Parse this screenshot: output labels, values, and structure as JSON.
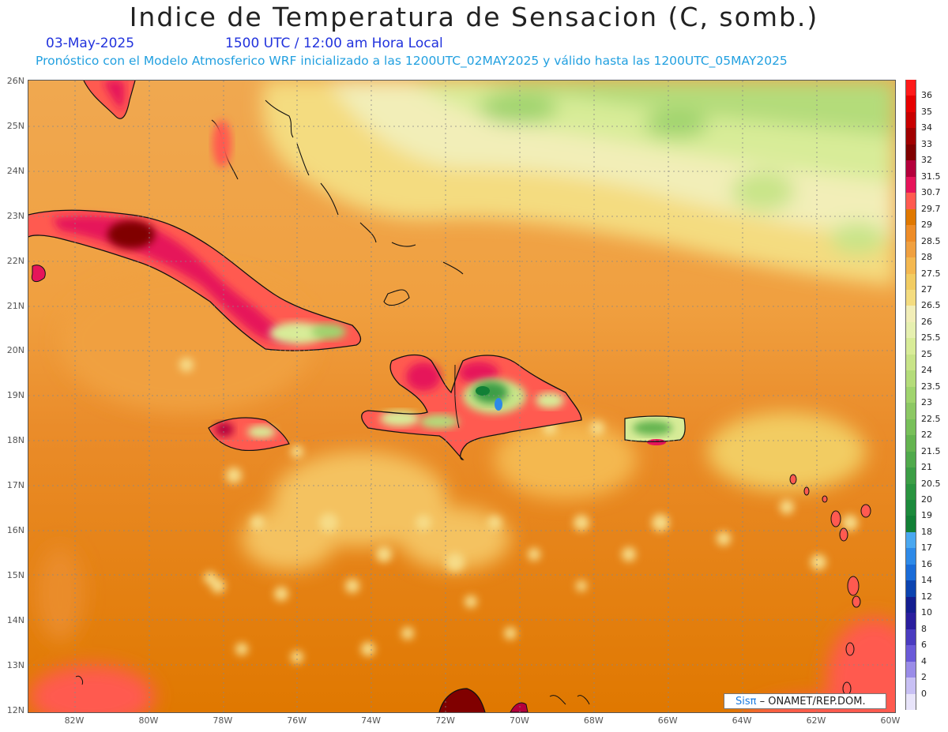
{
  "header": {
    "title": "Indice de Temperatura de Sensacion (C, somb.)",
    "date": "03-May-2025",
    "time": "1500 UTC / 12:00 am Hora Local",
    "model_info": "Pronóstico con el Modelo Atmosferico WRF inicializado a las 1200UTC_02MAY2025 y válido hasta las  1200UTC_05MAY2025"
  },
  "axes": {
    "lat_labels": [
      "26N",
      "25N",
      "24N",
      "23N",
      "22N",
      "21N",
      "20N",
      "19N",
      "18N",
      "17N",
      "16N",
      "15N",
      "14N",
      "13N",
      "12N"
    ],
    "lon_labels": [
      "82W",
      "80W",
      "78W",
      "76W",
      "74W",
      "72W",
      "70W",
      "68W",
      "66W",
      "64W",
      "62W",
      "60W"
    ]
  },
  "legend": {
    "levels": [
      "36",
      "35",
      "34",
      "33",
      "32",
      "31.5",
      "30.7",
      "29.7",
      "29",
      "28.5",
      "28",
      "27.5",
      "27",
      "26.5",
      "26",
      "25.5",
      "25",
      "24",
      "23.5",
      "23",
      "22.5",
      "22",
      "21.5",
      "21",
      "20.5",
      "20",
      "19",
      "18",
      "17",
      "16",
      "14",
      "12",
      "10",
      "8",
      "6",
      "4",
      "2",
      "0"
    ],
    "colors": [
      "#ff1a1a",
      "#e60000",
      "#c80000",
      "#a00000",
      "#800000",
      "#b4003c",
      "#e6145a",
      "#ff5a50",
      "#e07800",
      "#ee8c28",
      "#f0a040",
      "#f4b850",
      "#f2cc62",
      "#f4dc80",
      "#f2eeb8",
      "#e6f0b0",
      "#d8ec98",
      "#c8e488",
      "#b4dc7a",
      "#a0d46e",
      "#8cc864",
      "#78c05a",
      "#64b450",
      "#50aa4c",
      "#3c9e46",
      "#2a9440",
      "#1c8a3c",
      "#128036",
      "#4aa8f0",
      "#2e8ae8",
      "#1a6cd8",
      "#0c44b0",
      "#141e90",
      "#2a1e9e",
      "#4a3cc0",
      "#6a5ad8",
      "#9a8ce8",
      "#c8c0f4",
      "#e8e4fa"
    ]
  },
  "credit": {
    "brand": "Sisπ",
    "text": " – ONAMET/REP.DOM."
  }
}
